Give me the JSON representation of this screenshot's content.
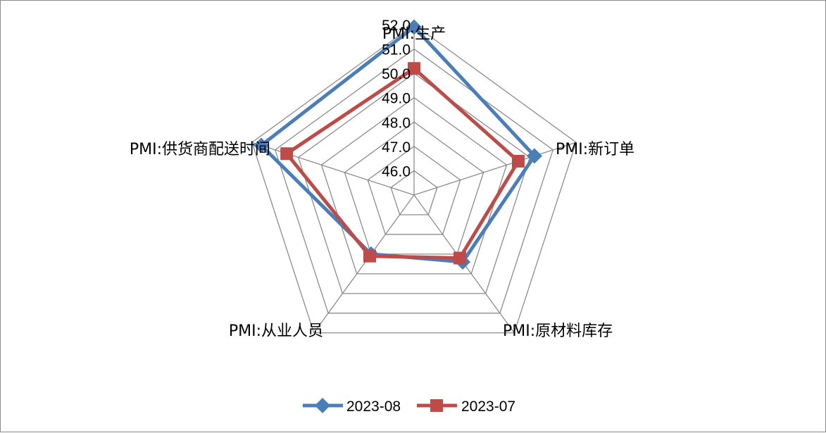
{
  "chart_data": {
    "type": "radar",
    "categories": [
      "PMI:生产",
      "PMI:新订单",
      "PMI:原材料库存",
      "PMI:从业人员",
      "PMI:供货商配送时间"
    ],
    "ticks": [
      "46.0",
      "47.0",
      "48.0",
      "49.0",
      "50.0",
      "51.0",
      "52.0"
    ],
    "rlim": [
      45,
      52
    ],
    "series": [
      {
        "name": "2023-08",
        "values": [
          51.9,
          50.2,
          48.4,
          48.0,
          51.6
        ],
        "color": "#4a7ebb",
        "marker": "diamond"
      },
      {
        "name": "2023-07",
        "values": [
          50.2,
          49.5,
          48.2,
          48.1,
          50.5
        ],
        "color": "#be4b48",
        "marker": "square"
      }
    ],
    "grid": true,
    "legend": "bottom"
  }
}
